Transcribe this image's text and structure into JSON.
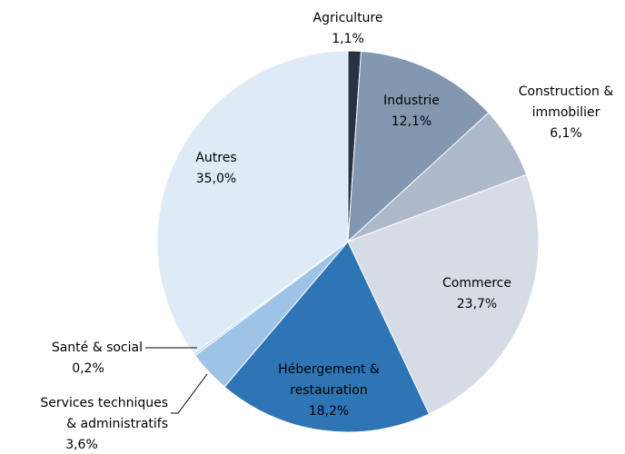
{
  "chart_data": {
    "type": "pie",
    "categories": [
      "Agriculture",
      "Industrie",
      "Construction & immobilier",
      "Commerce",
      "Hébergement & restauration",
      "Services techniques & administratifs",
      "Santé & social",
      "Autres"
    ],
    "values": [
      1.1,
      12.1,
      6.1,
      23.7,
      18.2,
      3.6,
      0.2,
      35.0
    ],
    "value_labels": [
      "1,1%",
      "12,1%",
      "6,1%",
      "23,7%",
      "18,2%",
      "3,6%",
      "0,2%",
      "35,0%"
    ],
    "colors": [
      "#253247",
      "#8497b0",
      "#adb9ca",
      "#d6dce5",
      "#2e75b6",
      "#9dc3e6",
      "#bdd7ee",
      "#deebf7"
    ]
  }
}
